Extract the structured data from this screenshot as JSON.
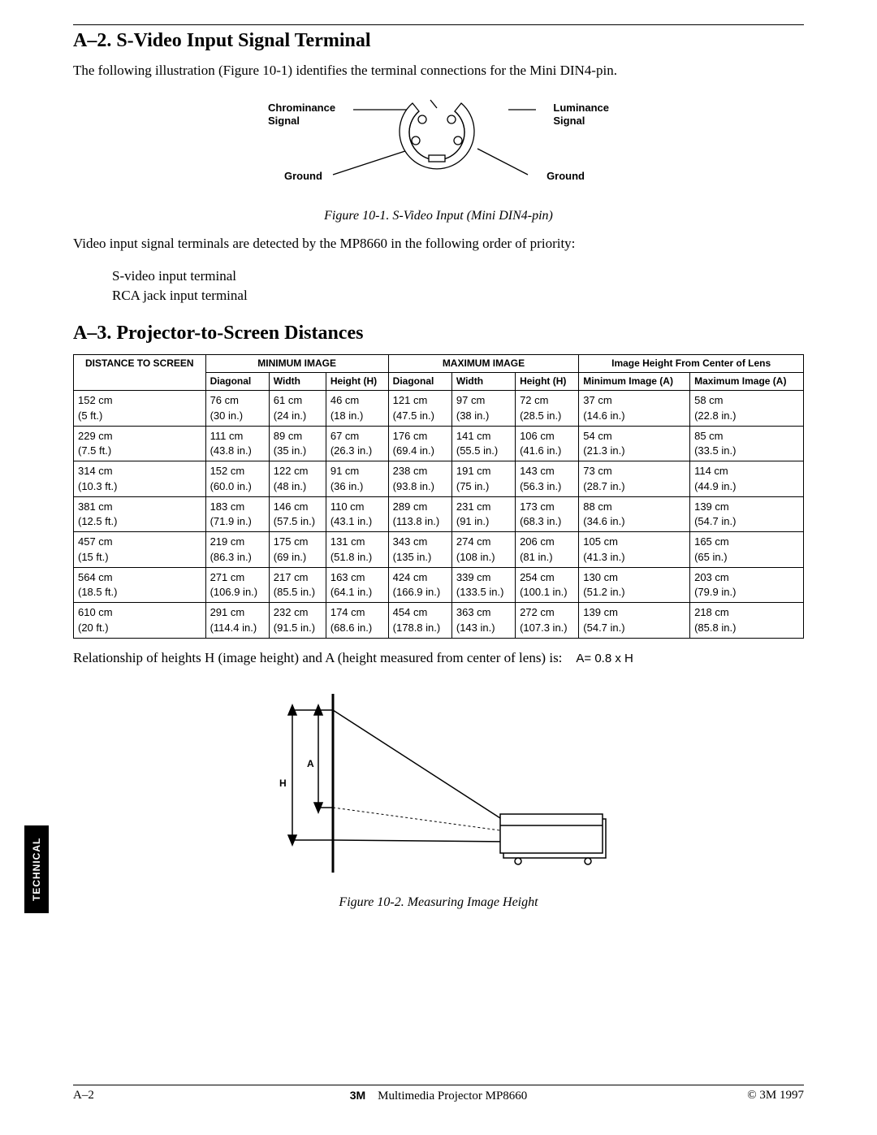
{
  "section_a2": {
    "title": "A–2.  S-Video Input Signal Terminal",
    "intro": "The following illustration (Figure 10-1) identifies the terminal connections for the Mini DIN4-pin.",
    "fig1_labels": {
      "chrominance": "Chrominance\nSignal",
      "luminance": "Luminance\nSignal",
      "ground_left": "Ground",
      "ground_right": "Ground"
    },
    "fig1_caption": "Figure 10-1.  S-Video Input (Mini DIN4-pin)",
    "priority_intro": "Video input signal terminals are detected by the MP8660 in the following order of priority:",
    "priority_list": [
      "S-video input terminal",
      "RCA jack input terminal"
    ]
  },
  "section_a3": {
    "title": "A–3.  Projector-to-Screen Distances",
    "table": {
      "header_row1": [
        "DISTANCE TO SCREEN",
        "MINIMUM IMAGE",
        "MAXIMUM IMAGE",
        "Image Height From Center of Lens"
      ],
      "header_row2": [
        "Diagonal",
        "Width",
        "Height (H)",
        "Diagonal",
        "Width",
        "Height (H)",
        "Minimum Image (A)",
        "Maximum Image (A)"
      ],
      "rows": [
        {
          "d": [
            "152 cm",
            "(5 ft.)"
          ],
          "c": [
            [
              "76 cm",
              "(30 in.)"
            ],
            [
              "61 cm",
              "(24 in.)"
            ],
            [
              "46 cm",
              "(18 in.)"
            ],
            [
              "121 cm",
              "(47.5 in.)"
            ],
            [
              "97 cm",
              "(38 in.)"
            ],
            [
              "72 cm",
              "(28.5 in.)"
            ],
            [
              "37 cm",
              "(14.6 in.)"
            ],
            [
              "58 cm",
              "(22.8 in.)"
            ]
          ]
        },
        {
          "d": [
            "229 cm",
            "(7.5 ft.)"
          ],
          "c": [
            [
              "111 cm",
              "(43.8 in.)"
            ],
            [
              "89 cm",
              "(35 in.)"
            ],
            [
              "67 cm",
              "(26.3 in.)"
            ],
            [
              "176 cm",
              "(69.4 in.)"
            ],
            [
              "141 cm",
              "(55.5 in.)"
            ],
            [
              "106 cm",
              "(41.6 in.)"
            ],
            [
              "54 cm",
              "(21.3 in.)"
            ],
            [
              "85 cm",
              "(33.5 in.)"
            ]
          ]
        },
        {
          "d": [
            "314 cm",
            "(10.3 ft.)"
          ],
          "c": [
            [
              "152 cm",
              "(60.0 in.)"
            ],
            [
              "122 cm",
              "(48 in.)"
            ],
            [
              "91 cm",
              "(36 in.)"
            ],
            [
              "238 cm",
              "(93.8 in.)"
            ],
            [
              "191 cm",
              "(75 in.)"
            ],
            [
              "143 cm",
              "(56.3 in.)"
            ],
            [
              "73 cm",
              "(28.7 in.)"
            ],
            [
              "114 cm",
              "(44.9 in.)"
            ]
          ]
        },
        {
          "d": [
            "381 cm",
            "(12.5 ft.)"
          ],
          "c": [
            [
              "183 cm",
              "(71.9 in.)"
            ],
            [
              "146 cm",
              "(57.5 in.)"
            ],
            [
              "110 cm",
              "(43.1 in.)"
            ],
            [
              "289 cm",
              "(113.8 in.)"
            ],
            [
              "231 cm",
              "(91 in.)"
            ],
            [
              "173 cm",
              "(68.3 in.)"
            ],
            [
              "88 cm",
              "(34.6 in.)"
            ],
            [
              "139 cm",
              "(54.7 in.)"
            ]
          ]
        },
        {
          "d": [
            "457 cm",
            "(15 ft.)"
          ],
          "c": [
            [
              "219 cm",
              "(86.3 in.)"
            ],
            [
              "175 cm",
              "(69 in.)"
            ],
            [
              "131 cm",
              "(51.8 in.)"
            ],
            [
              "343 cm",
              "(135 in.)"
            ],
            [
              "274 cm",
              "(108 in.)"
            ],
            [
              "206 cm",
              "(81 in.)"
            ],
            [
              "105 cm",
              "(41.3 in.)"
            ],
            [
              "165 cm",
              "(65 in.)"
            ]
          ]
        },
        {
          "d": [
            "564 cm",
            "(18.5 ft.)"
          ],
          "c": [
            [
              "271 cm",
              "(106.9 in.)"
            ],
            [
              "217 cm",
              "(85.5 in.)"
            ],
            [
              "163 cm",
              "(64.1 in.)"
            ],
            [
              "424 cm",
              "(166.9 in.)"
            ],
            [
              "339 cm",
              "(133.5 in.)"
            ],
            [
              "254 cm",
              "(100.1 in.)"
            ],
            [
              "130 cm",
              "(51.2 in.)"
            ],
            [
              "203 cm",
              "(79.9 in.)"
            ]
          ]
        },
        {
          "d": [
            "610 cm",
            "(20 ft.)"
          ],
          "c": [
            [
              "291 cm",
              "(114.4 in.)"
            ],
            [
              "232 cm",
              "(91.5 in.)"
            ],
            [
              "174 cm",
              "(68.6 in.)"
            ],
            [
              "454 cm",
              "(178.8 in.)"
            ],
            [
              "363 cm",
              "(143 in.)"
            ],
            [
              "272 cm",
              "(107.3 in.)"
            ],
            [
              "139 cm",
              "(54.7 in.)"
            ],
            [
              "218 cm",
              "(85.8 in.)"
            ]
          ]
        }
      ]
    },
    "relationship_text": "Relationship of heights H (image height) and A (height measured from center of lens) is:",
    "relationship_formula": "A= 0.8 x H",
    "fig2_labels": {
      "A": "A",
      "H": "H"
    },
    "fig2_caption": "Figure 10-2.  Measuring Image Height"
  },
  "side_tab": "TECHNICAL",
  "footer": {
    "left": "A–2",
    "center_prefix": "3M",
    "center_main": "Multimedia Projector MP8660",
    "right": "© 3M 1997"
  },
  "diagram": {
    "din4": {
      "body_stroke": "#000",
      "line_stroke": "#000",
      "fill": "#fff"
    },
    "fig2": {
      "stroke": "#000",
      "fill": "#fff"
    }
  }
}
